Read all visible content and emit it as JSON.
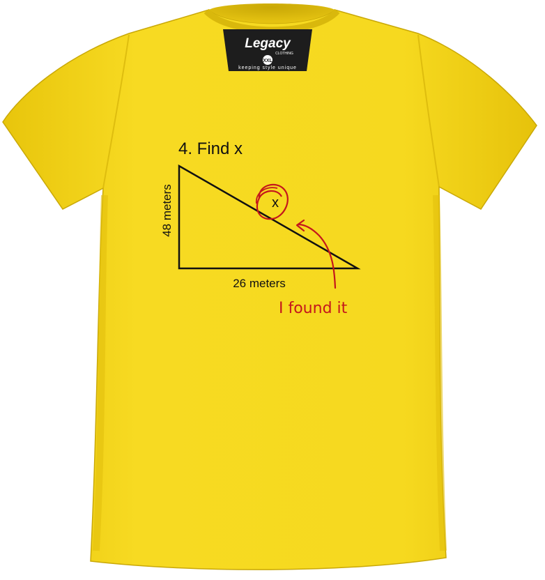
{
  "label": {
    "brand": "Legacy",
    "brand_sub": "CLOTHING",
    "size": "XXL",
    "tagline": "keeping style unique"
  },
  "print": {
    "title": "4. Find x",
    "side_label": "48 meters",
    "base_label": "26 meters",
    "x_mark": "x",
    "note": "I found it"
  },
  "colors": {
    "shirt": "#f2d31a",
    "ink": "#111111",
    "marker": "#c4161c",
    "label": "#1d1d1d"
  }
}
